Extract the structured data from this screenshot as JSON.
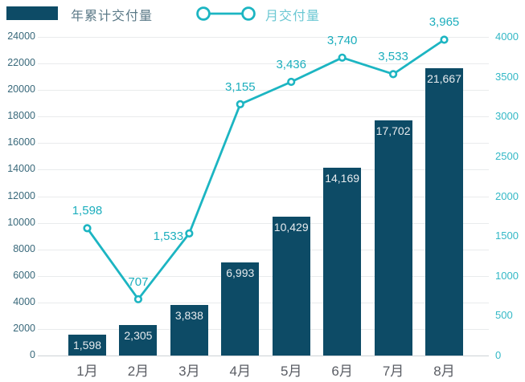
{
  "legend": {
    "items": [
      {
        "label": "年累计交付量",
        "type": "bar"
      },
      {
        "label": "月交付量",
        "type": "line"
      }
    ]
  },
  "chart_data": {
    "type": "combo-bar-line",
    "categories": [
      "1月",
      "2月",
      "3月",
      "4月",
      "5月",
      "6月",
      "7月",
      "8月"
    ],
    "series": [
      {
        "name": "年累计交付量",
        "type": "bar",
        "y_axis": "left",
        "values": [
          1598,
          2305,
          3838,
          6993,
          10429,
          14169,
          17702,
          21667
        ],
        "labels": [
          "1,598",
          "2,305",
          "3,838",
          "6,993",
          "10,429",
          "14,169",
          "17,702",
          "21,667"
        ]
      },
      {
        "name": "月交付量",
        "type": "line",
        "y_axis": "right",
        "values": [
          1598,
          707,
          1533,
          3155,
          3436,
          3740,
          3533,
          3965
        ],
        "labels": [
          "1,598",
          "707",
          "1,533",
          "3,155",
          "3,436",
          "3,740",
          "3,533",
          "3,965"
        ]
      }
    ],
    "left_axis": {
      "min": 0,
      "max": 24000,
      "tick_step": 2000,
      "ticks": [
        0,
        2000,
        4000,
        6000,
        8000,
        10000,
        12000,
        14000,
        16000,
        18000,
        20000,
        22000,
        24000
      ]
    },
    "right_axis": {
      "min": 0,
      "max": 4000,
      "tick_step": 500,
      "ticks": [
        0,
        500,
        1000,
        1500,
        2000,
        2500,
        3000,
        3500,
        4000
      ]
    },
    "grid": true,
    "legend_position": "top-left",
    "colors": {
      "bar": "#0d4b66",
      "line": "#1cb5c2",
      "line_value_label": "#1caebd",
      "bar_value_label": "#e7ebee",
      "left_axis_text": "#38687a",
      "right_axis_text": "#33b8c6",
      "x_axis_text": "#5a5d64",
      "legend_bar_text": "#5c7a88",
      "legend_line_text": "#6cc8d3",
      "gridline": "#e9ebec",
      "background": "#ffffff"
    }
  }
}
